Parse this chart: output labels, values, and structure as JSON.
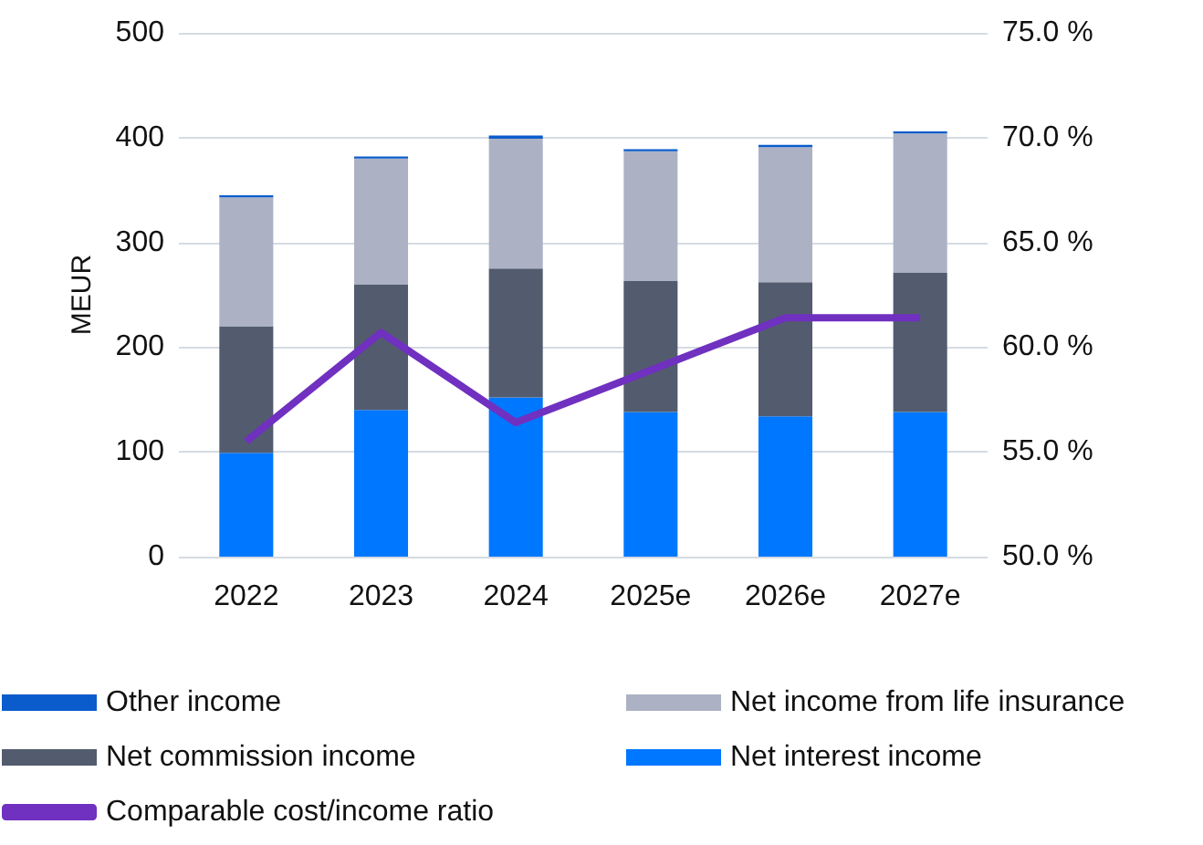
{
  "chart_data": {
    "type": "bar",
    "ylabel": "MEUR",
    "categories": [
      "2022",
      "2023",
      "2024",
      "2025e",
      "2026e",
      "2027e"
    ],
    "stacked": true,
    "series": [
      {
        "name": "Net interest income",
        "color": "#0077ff",
        "values": [
          99,
          140,
          152,
          138,
          134,
          138
        ]
      },
      {
        "name": "Net commission income",
        "color": "#525c6e",
        "values": [
          121,
          120,
          123,
          125,
          128,
          133
        ]
      },
      {
        "name": "Net income from life insurance",
        "color": "#acb2c4",
        "values": [
          123,
          120,
          124,
          124,
          129,
          133
        ]
      },
      {
        "name": "Other income",
        "color": "#0a5ccc",
        "values": [
          2,
          2,
          3,
          2,
          2,
          2
        ]
      },
      {
        "name": "Comparable cost/income ratio",
        "type": "line",
        "axis": "y2",
        "color": "#7030c0",
        "marker": "none",
        "values": [
          55.5,
          60.7,
          56.4,
          58.9,
          61.4,
          61.4
        ]
      }
    ],
    "ylim": [
      0,
      500
    ],
    "yticks": [
      0,
      100,
      200,
      300,
      400,
      500
    ],
    "y2lim": [
      50,
      75
    ],
    "y2ticks": [
      {
        "value": 50,
        "label": "50.0 %"
      },
      {
        "value": 55,
        "label": "55.0 %"
      },
      {
        "value": 60,
        "label": "60.0 %"
      },
      {
        "value": 65,
        "label": "65.0 %"
      },
      {
        "value": 70,
        "label": "70.0 %"
      },
      {
        "value": 75,
        "label": "75.0 %"
      }
    ],
    "grid": "y",
    "legend": "bottom"
  }
}
